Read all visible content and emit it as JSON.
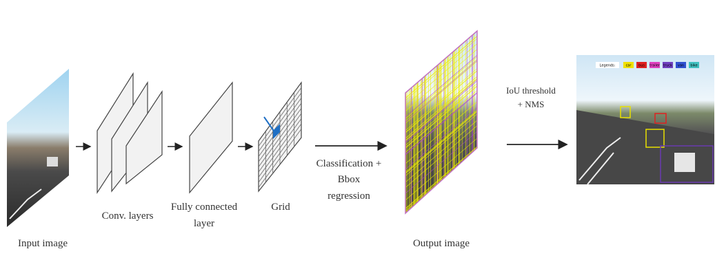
{
  "input_image": {
    "label": "Input image"
  },
  "conv_layers": {
    "label": "Conv. layers"
  },
  "fully_connected": {
    "label": [
      "Fully connected",
      "layer"
    ]
  },
  "grid": {
    "label": "Grid"
  },
  "classification": {
    "label": [
      "Classification +",
      "Bbox",
      "regression"
    ]
  },
  "output_image": {
    "label": "Output image"
  },
  "nms": {
    "label": [
      "IoU threshold",
      "+ NMS"
    ]
  },
  "final_image": {
    "legend_title": "Legends:",
    "legend": [
      "car",
      "bus",
      "trailer",
      "truck",
      "van",
      "bike"
    ]
  }
}
